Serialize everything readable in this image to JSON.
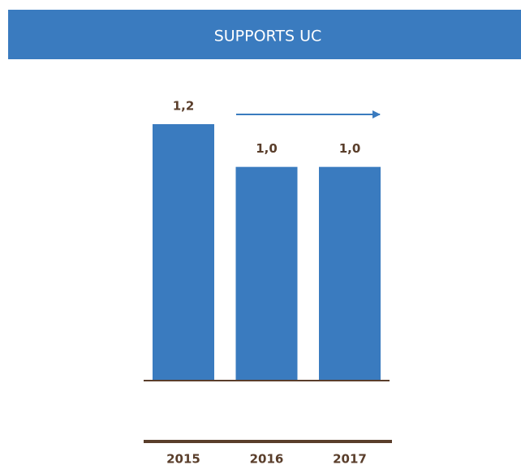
{
  "chart_data": {
    "type": "bar",
    "title": "SUPPORTS UC",
    "categories": [
      "2015",
      "2016",
      "2017"
    ],
    "values": [
      1.2,
      1.0,
      1.0
    ],
    "value_labels": [
      "1,2",
      "1,0",
      "1,0"
    ],
    "color": "#3a7bbf"
  }
}
